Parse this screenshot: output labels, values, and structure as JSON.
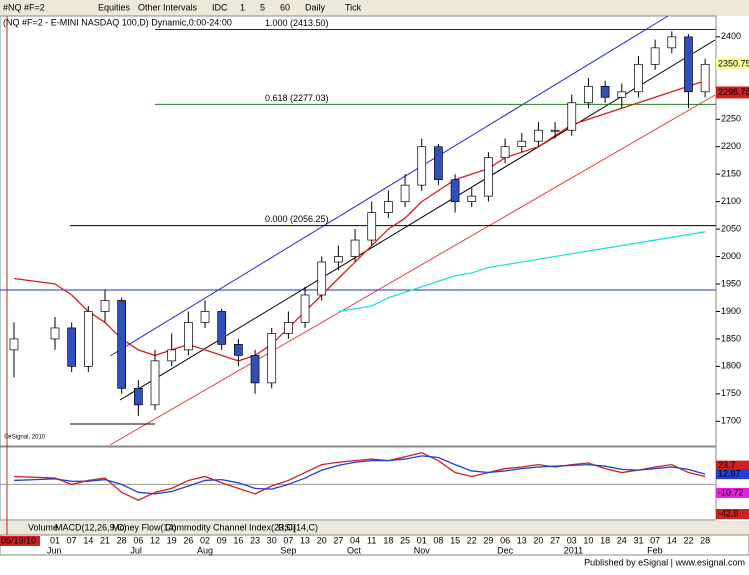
{
  "toolbar": [
    "#NQ #F=2",
    "Equities",
    "Other Intervals",
    "IDC",
    "1",
    "5",
    "60",
    "Daily",
    "Tick"
  ],
  "tabs": [
    "Volume",
    "MACD(12,26,9,C)",
    "Money Flow(14)",
    "Commodity Channel Index(23,C)",
    "RSI(14,C)"
  ],
  "footer": "Published by eSignal | www.esignal.com",
  "copyright": "©eSignal, 2010",
  "chart_data": {
    "type": "candlestick",
    "title": "(NQ #F=2 - E-MINI NASDAQ 100,D) Dynamic,0:00-24:00",
    "categories": [
      "05/19/10",
      "01",
      "07",
      "14",
      "21",
      "28",
      "06",
      "12",
      "19",
      "26",
      "02",
      "09",
      "16",
      "23",
      "30",
      "07",
      "13",
      "20",
      "27",
      "04",
      "11",
      "18",
      "25",
      "01",
      "08",
      "15",
      "22",
      "29",
      "06",
      "13",
      "20",
      "27",
      "03",
      "10",
      "18",
      "24",
      "31",
      "07",
      "14",
      "22",
      "28"
    ],
    "months": [
      {
        "label": "Jun",
        "index": 1
      },
      {
        "label": "Jul",
        "index": 6
      },
      {
        "label": "Aug",
        "index": 10
      },
      {
        "label": "Sep",
        "index": 15
      },
      {
        "label": "Oct",
        "index": 19
      },
      {
        "label": "Nov",
        "index": 23
      },
      {
        "label": "Dec",
        "index": 28
      },
      {
        "label": "2011",
        "index": 32
      },
      {
        "label": "Feb",
        "index": 37
      }
    ],
    "open": [
      1830,
      1850,
      1870,
      1800,
      1900,
      1920,
      1760,
      1730,
      1810,
      1830,
      1880,
      1900,
      1840,
      1820,
      1770,
      1860,
      1880,
      1930,
      1990,
      2000,
      2030,
      2080,
      2100,
      2130,
      2200,
      2140,
      2100,
      2110,
      2180,
      2200,
      2210,
      2230,
      2230,
      2280,
      2310,
      2290,
      2300,
      2350,
      2380,
      2400,
      2300
    ],
    "high": [
      1880,
      1890,
      1880,
      1910,
      1940,
      1925,
      1775,
      1830,
      1860,
      1900,
      1920,
      1905,
      1850,
      1830,
      1870,
      1900,
      1945,
      2000,
      2020,
      2050,
      2100,
      2120,
      2150,
      2215,
      2205,
      2150,
      2125,
      2190,
      2215,
      2225,
      2245,
      2245,
      2295,
      2325,
      2320,
      2315,
      2365,
      2395,
      2410,
      2405,
      2360
    ],
    "low": [
      1780,
      1830,
      1790,
      1790,
      1880,
      1750,
      1710,
      1720,
      1800,
      1820,
      1870,
      1830,
      1800,
      1750,
      1760,
      1850,
      1870,
      1920,
      1975,
      1990,
      2020,
      2070,
      2090,
      2120,
      2130,
      2080,
      2090,
      2100,
      2170,
      2190,
      2200,
      2215,
      2220,
      2270,
      2280,
      2270,
      2290,
      2340,
      2370,
      2270,
      2290
    ],
    "close": [
      1850,
      1870,
      1800,
      1900,
      1920,
      1760,
      1730,
      1810,
      1830,
      1880,
      1900,
      1840,
      1820,
      1770,
      1860,
      1880,
      1930,
      1990,
      2000,
      2030,
      2080,
      2100,
      2130,
      2200,
      2140,
      2100,
      2110,
      2180,
      2200,
      2210,
      2230,
      2230,
      2280,
      2310,
      2290,
      2300,
      2350,
      2380,
      2400,
      2300,
      2350
    ],
    "series": [
      {
        "color": "#d02020",
        "values": [
          1960,
          1950,
          1930,
          1900,
          1880,
          1850,
          1830,
          1820,
          1830,
          1840,
          1830,
          1820,
          1810,
          1820,
          1840,
          1870,
          1900,
          1930,
          1960,
          1990,
          2020,
          2050,
          2070,
          2100,
          2120,
          2140,
          2150,
          2160,
          2180,
          2190,
          2200,
          2220,
          2240,
          2250,
          2260,
          2270,
          2280,
          2290,
          2300,
          2310,
          2320
        ]
      },
      {
        "color": "#20e0e0",
        "values": [
          null,
          null,
          null,
          null,
          null,
          null,
          null,
          null,
          null,
          null,
          null,
          null,
          null,
          null,
          null,
          null,
          null,
          null,
          1900,
          1905,
          1910,
          1925,
          1935,
          1945,
          1955,
          1965,
          1970,
          1980,
          1985,
          1990,
          1995,
          2000,
          2005,
          2010,
          2015,
          2020,
          2025,
          2030,
          2035,
          2040,
          2045
        ]
      }
    ],
    "levels": [
      {
        "label": "1.000 (2413.50)",
        "value": 2413.5,
        "color": "#2020c0"
      },
      {
        "label": "0.618 (2277.03)",
        "value": 2277.03,
        "color": "#208020"
      },
      {
        "label": "0.000 (2056.25)",
        "value": 2056.25,
        "color": "#000000"
      }
    ],
    "price_boxes": [
      {
        "value": 2350.75,
        "color": "#ffffa0",
        "text_color": "#3050c0"
      },
      {
        "value": 2298.78,
        "color": "#d02020",
        "text_color": "#ffffff"
      }
    ],
    "ylim": [
      1655,
      2438
    ],
    "yticks": [
      1700,
      1750,
      1800,
      1850,
      1900,
      1950,
      2000,
      2050,
      2100,
      2150,
      2200,
      2250,
      2300,
      2350,
      2400
    ],
    "panel": {
      "ylim": [
        -45,
        46
      ],
      "series": [
        {
          "color": "#d02020",
          "values": [
            10,
            8,
            0,
            5,
            8,
            -10,
            -20,
            -10,
            -5,
            5,
            10,
            2,
            -5,
            -12,
            -2,
            5,
            15,
            25,
            28,
            30,
            32,
            30,
            35,
            40,
            30,
            15,
            10,
            15,
            20,
            22,
            25,
            22,
            25,
            27,
            20,
            15,
            18,
            22,
            25,
            15,
            10
          ]
        },
        {
          "color": "#2040d0",
          "values": [
            5,
            7,
            4,
            4,
            6,
            0,
            -10,
            -12,
            -9,
            -2,
            5,
            6,
            2,
            -5,
            -6,
            0,
            8,
            18,
            24,
            28,
            30,
            30,
            32,
            36,
            34,
            25,
            17,
            15,
            17,
            20,
            22,
            23,
            24,
            25,
            23,
            19,
            18,
            20,
            22,
            19,
            13
          ]
        }
      ],
      "labels": [
        {
          "value": 23.7,
          "color": "#d02020"
        },
        {
          "value": 12.97,
          "color": "#2040d0"
        },
        {
          "value": -10.72,
          "color": "#e020e0"
        },
        {
          "value": -42.9,
          "color": "#d02020"
        }
      ]
    }
  }
}
